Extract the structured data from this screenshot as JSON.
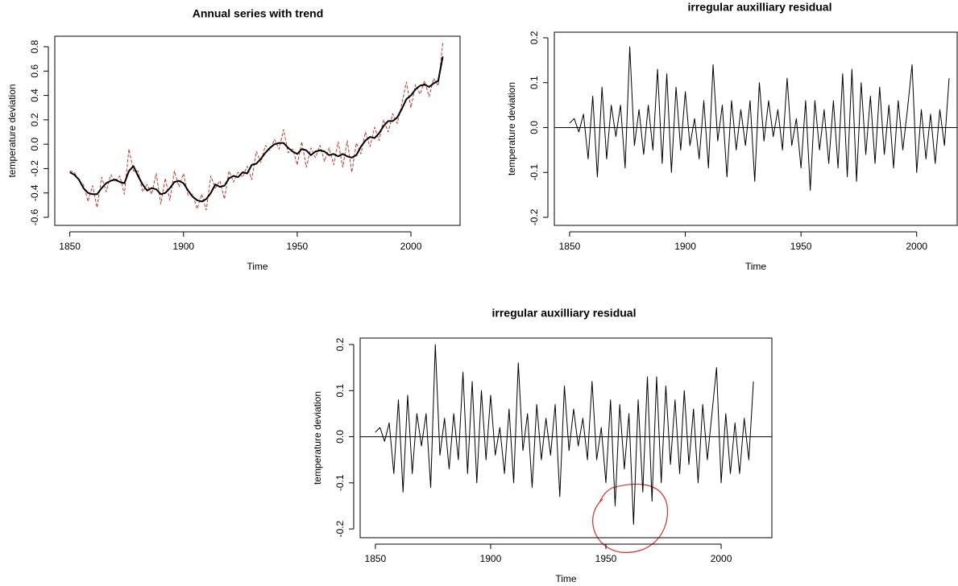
{
  "chart_data": [
    {
      "type": "line",
      "title": "Annual series with trend",
      "xlabel": "Time",
      "ylabel": "temperature deviation",
      "x": [
        1850,
        1852,
        1854,
        1856,
        1858,
        1860,
        1862,
        1864,
        1866,
        1868,
        1870,
        1872,
        1874,
        1876,
        1878,
        1880,
        1882,
        1884,
        1886,
        1888,
        1890,
        1892,
        1894,
        1896,
        1898,
        1900,
        1902,
        1904,
        1906,
        1908,
        1910,
        1912,
        1914,
        1916,
        1918,
        1920,
        1922,
        1924,
        1926,
        1928,
        1930,
        1932,
        1934,
        1936,
        1938,
        1940,
        1942,
        1944,
        1946,
        1948,
        1950,
        1952,
        1954,
        1956,
        1958,
        1960,
        1962,
        1964,
        1966,
        1968,
        1970,
        1972,
        1974,
        1976,
        1978,
        1980,
        1982,
        1984,
        1986,
        1988,
        1990,
        1992,
        1994,
        1996,
        1998,
        2000,
        2002,
        2004,
        2006,
        2008,
        2010,
        2012,
        2014
      ],
      "series": [
        {
          "color": "#c0392b",
          "dash": true,
          "width": 1,
          "values": [
            -0.22,
            -0.23,
            -0.3,
            -0.33,
            -0.47,
            -0.34,
            -0.52,
            -0.27,
            -0.39,
            -0.25,
            -0.31,
            -0.26,
            -0.41,
            -0.04,
            -0.22,
            -0.22,
            -0.39,
            -0.33,
            -0.41,
            -0.24,
            -0.49,
            -0.28,
            -0.46,
            -0.22,
            -0.35,
            -0.24,
            -0.42,
            -0.41,
            -0.53,
            -0.41,
            -0.54,
            -0.26,
            -0.36,
            -0.3,
            -0.45,
            -0.22,
            -0.31,
            -0.23,
            -0.27,
            -0.18,
            -0.29,
            -0.06,
            -0.15,
            -0.01,
            -0.05,
            0.04,
            -0.04,
            0.12,
            -0.07,
            -0.04,
            -0.17,
            0.02,
            -0.19,
            -0.03,
            -0.11,
            -0.01,
            -0.14,
            -0.03,
            -0.17,
            0.02,
            -0.19,
            0.03,
            -0.23,
            0.01,
            -0.08,
            0.1,
            -0.02,
            0.14,
            0.03,
            0.2,
            0.1,
            0.25,
            0.17,
            0.33,
            0.51,
            0.3,
            0.49,
            0.41,
            0.52,
            0.39,
            0.54,
            0.48,
            0.83
          ]
        },
        {
          "color": "#000000",
          "dash": false,
          "width": 2,
          "values": [
            -0.23,
            -0.25,
            -0.29,
            -0.36,
            -0.4,
            -0.41,
            -0.41,
            -0.36,
            -0.32,
            -0.3,
            -0.29,
            -0.31,
            -0.32,
            -0.22,
            -0.18,
            -0.26,
            -0.33,
            -0.38,
            -0.36,
            -0.37,
            -0.41,
            -0.4,
            -0.36,
            -0.31,
            -0.3,
            -0.32,
            -0.38,
            -0.43,
            -0.46,
            -0.47,
            -0.45,
            -0.4,
            -0.33,
            -0.35,
            -0.34,
            -0.28,
            -0.26,
            -0.27,
            -0.23,
            -0.24,
            -0.17,
            -0.16,
            -0.12,
            -0.07,
            -0.03,
            0.0,
            0.01,
            0.01,
            -0.03,
            -0.06,
            -0.08,
            -0.04,
            -0.05,
            -0.09,
            -0.06,
            -0.05,
            -0.06,
            -0.09,
            -0.08,
            -0.1,
            -0.08,
            -0.1,
            -0.11,
            -0.09,
            -0.02,
            0.03,
            0.06,
            0.05,
            0.09,
            0.15,
            0.19,
            0.19,
            0.22,
            0.29,
            0.37,
            0.4,
            0.45,
            0.48,
            0.49,
            0.47,
            0.5,
            0.52,
            0.72
          ]
        }
      ],
      "xlim": [
        1843.4,
        2021.6
      ],
      "xticks": [
        1850,
        1900,
        1950,
        2000
      ],
      "ylim": [
        -0.666,
        0.886
      ],
      "yticks": [
        -0.6,
        -0.4,
        -0.2,
        {
          "value": 0,
          "label": "0.0"
        },
        0.2,
        0.4,
        0.6,
        0.8
      ]
    },
    {
      "type": "line",
      "title": "irregular auxilliary residual",
      "xlabel": "Time",
      "ylabel": "temperature deviation",
      "hline": 0,
      "x": [
        1850,
        1852,
        1854,
        1856,
        1858,
        1860,
        1862,
        1864,
        1866,
        1868,
        1870,
        1872,
        1874,
        1876,
        1878,
        1880,
        1882,
        1884,
        1886,
        1888,
        1890,
        1892,
        1894,
        1896,
        1898,
        1900,
        1902,
        1904,
        1906,
        1908,
        1910,
        1912,
        1914,
        1916,
        1918,
        1920,
        1922,
        1924,
        1926,
        1928,
        1930,
        1932,
        1934,
        1936,
        1938,
        1940,
        1942,
        1944,
        1946,
        1948,
        1950,
        1952,
        1954,
        1956,
        1958,
        1960,
        1962,
        1964,
        1966,
        1968,
        1970,
        1972,
        1974,
        1976,
        1978,
        1980,
        1982,
        1984,
        1986,
        1988,
        1990,
        1992,
        1994,
        1996,
        1998,
        2000,
        2002,
        2004,
        2006,
        2008,
        2010,
        2012,
        2014
      ],
      "series": [
        {
          "color": "#000000",
          "dash": false,
          "width": 1,
          "values": [
            0.01,
            0.02,
            -0.01,
            0.03,
            -0.07,
            0.07,
            -0.11,
            0.09,
            -0.07,
            0.05,
            -0.02,
            0.05,
            -0.09,
            0.18,
            -0.04,
            0.04,
            -0.06,
            0.05,
            -0.05,
            0.13,
            -0.08,
            0.12,
            -0.1,
            0.09,
            -0.05,
            0.08,
            -0.04,
            0.02,
            -0.07,
            0.06,
            -0.09,
            0.14,
            -0.03,
            0.05,
            -0.11,
            0.06,
            -0.05,
            0.04,
            -0.04,
            0.06,
            -0.12,
            0.1,
            -0.03,
            0.06,
            -0.02,
            0.04,
            -0.05,
            0.11,
            -0.04,
            0.02,
            -0.09,
            0.06,
            -0.14,
            0.06,
            -0.05,
            0.04,
            -0.08,
            0.06,
            -0.09,
            0.12,
            -0.11,
            0.13,
            -0.12,
            0.1,
            -0.06,
            0.07,
            -0.08,
            0.09,
            -0.06,
            0.05,
            -0.09,
            0.06,
            -0.05,
            0.04,
            0.14,
            -0.1,
            0.04,
            -0.07,
            0.03,
            -0.08,
            0.04,
            -0.04,
            0.11
          ]
        }
      ],
      "xlim": [
        1843.4,
        2017.5
      ],
      "xticks": [
        1850,
        1900,
        1950,
        2000
      ],
      "ylim": [
        -0.218,
        0.2125
      ],
      "yticks": [
        -0.2,
        -0.1,
        {
          "value": 0,
          "label": "0.0"
        },
        0.1,
        0.2
      ]
    },
    {
      "type": "line",
      "title": "irregular auxilliary residual",
      "xlabel": "Time",
      "ylabel": "temperature deviation",
      "hline": 0,
      "x": [
        1850,
        1852,
        1854,
        1856,
        1858,
        1860,
        1862,
        1864,
        1866,
        1868,
        1870,
        1872,
        1874,
        1876,
        1878,
        1880,
        1882,
        1884,
        1886,
        1888,
        1890,
        1892,
        1894,
        1896,
        1898,
        1900,
        1902,
        1904,
        1906,
        1908,
        1910,
        1912,
        1914,
        1916,
        1918,
        1920,
        1922,
        1924,
        1926,
        1928,
        1930,
        1932,
        1934,
        1936,
        1938,
        1940,
        1942,
        1944,
        1946,
        1948,
        1950,
        1952,
        1954,
        1956,
        1958,
        1960,
        1962,
        1964,
        1966,
        1968,
        1970,
        1972,
        1974,
        1976,
        1978,
        1980,
        1982,
        1984,
        1986,
        1988,
        1990,
        1992,
        1994,
        1996,
        1998,
        2000,
        2002,
        2004,
        2006,
        2008,
        2010,
        2012,
        2014
      ],
      "series": [
        {
          "color": "#000000",
          "dash": false,
          "width": 1,
          "values": [
            0.01,
            0.02,
            -0.01,
            0.03,
            -0.08,
            0.08,
            -0.12,
            0.09,
            -0.08,
            0.05,
            -0.02,
            0.05,
            -0.11,
            0.2,
            -0.04,
            0.04,
            -0.07,
            0.05,
            -0.05,
            0.14,
            -0.08,
            0.12,
            -0.1,
            0.1,
            -0.05,
            0.09,
            -0.04,
            0.02,
            -0.08,
            0.06,
            -0.1,
            0.16,
            -0.03,
            0.05,
            -0.11,
            0.07,
            -0.05,
            0.04,
            -0.04,
            0.07,
            -0.13,
            0.11,
            -0.03,
            0.06,
            -0.02,
            0.04,
            -0.05,
            0.12,
            -0.05,
            0.02,
            -0.1,
            0.08,
            -0.15,
            0.07,
            -0.07,
            0.05,
            -0.19,
            0.08,
            -0.12,
            0.13,
            -0.14,
            0.13,
            -0.1,
            0.11,
            -0.06,
            0.08,
            -0.08,
            0.1,
            -0.06,
            0.06,
            -0.1,
            0.07,
            -0.05,
            0.05,
            0.15,
            -0.1,
            0.05,
            -0.08,
            0.03,
            -0.08,
            0.04,
            -0.05,
            0.12
          ]
        }
      ],
      "xlim": [
        1843.4,
        2022
      ],
      "xticks": [
        1850,
        1900,
        1950,
        2000
      ],
      "ylim": [
        -0.219,
        0.214
      ],
      "yticks": [
        -0.2,
        -0.1,
        {
          "value": 0,
          "label": "0.0"
        },
        0.1,
        0.2
      ]
    }
  ]
}
